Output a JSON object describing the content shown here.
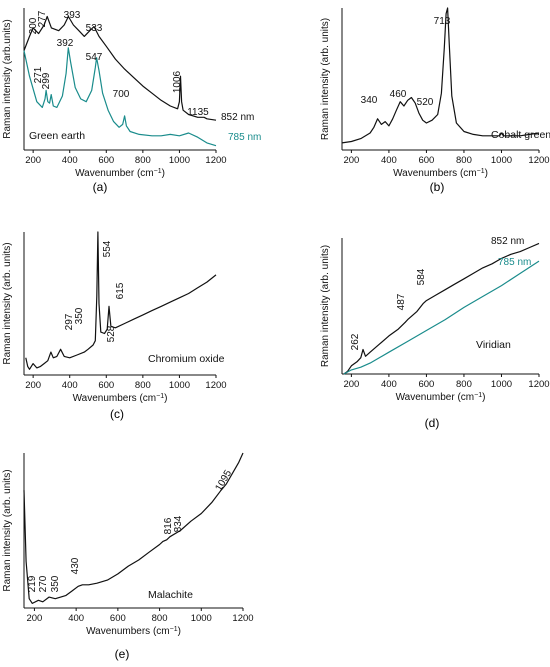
{
  "chart_data": [
    {
      "id": "a",
      "type": "line",
      "panel_label": "(a)",
      "title": "Green earth",
      "xlabel": "Wavenumber",
      "ylabel": "Raman intensity  (arb.units)",
      "xlim": [
        150,
        1200
      ],
      "ylim": [
        0,
        100
      ],
      "xticks": [
        200,
        400,
        600,
        800,
        1000,
        1200
      ],
      "y_tick_labels": false,
      "series": [
        {
          "name": "852 nm",
          "color": "#111111",
          "x": [
            150,
            180,
            200,
            230,
            260,
            277,
            300,
            340,
            370,
            393,
            420,
            450,
            480,
            510,
            533,
            560,
            600,
            650,
            700,
            750,
            800,
            850,
            900,
            950,
            990,
            1000,
            1006,
            1012,
            1020,
            1050,
            1100,
            1135,
            1150,
            1200
          ],
          "y": [
            70,
            80,
            86,
            82,
            88,
            94,
            86,
            84,
            88,
            94,
            88,
            84,
            80,
            84,
            87,
            80,
            73,
            64,
            57,
            51,
            45,
            40,
            35,
            31,
            29,
            34,
            52,
            34,
            28,
            25,
            23,
            23,
            22,
            21
          ]
        },
        {
          "name": "785 nm",
          "color": "#1a8c8c",
          "x": [
            150,
            180,
            220,
            250,
            265,
            271,
            280,
            290,
            299,
            310,
            330,
            360,
            380,
            392,
            405,
            430,
            460,
            490,
            520,
            540,
            547,
            560,
            580,
            610,
            640,
            670,
            690,
            700,
            710,
            730,
            780,
            850,
            900,
            950,
            1000,
            1050,
            1100,
            1150,
            1200
          ],
          "y": [
            70,
            52,
            34,
            30,
            36,
            42,
            34,
            33,
            39,
            31,
            30,
            38,
            54,
            72,
            62,
            44,
            36,
            34,
            42,
            58,
            65,
            56,
            40,
            28,
            20,
            16,
            18,
            24,
            17,
            13,
            11,
            10,
            10,
            11,
            10,
            12,
            9,
            5,
            3
          ]
        }
      ],
      "annotations": [
        "200",
        "277",
        "393",
        "533",
        "271",
        "299",
        "392",
        "547",
        "700",
        "1006",
        "1135"
      ]
    },
    {
      "id": "b",
      "type": "line",
      "panel_label": "(b)",
      "title": "Cobalt green",
      "xlabel": "Wavenumbers",
      "ylabel": "Raman intensity  (arb. units)",
      "xlim": [
        150,
        1200
      ],
      "ylim": [
        0,
        100
      ],
      "xticks": [
        200,
        400,
        600,
        800,
        1000,
        1200
      ],
      "y_tick_labels": false,
      "series": [
        {
          "color": "#111111",
          "x": [
            150,
            200,
            250,
            300,
            320,
            340,
            360,
            380,
            400,
            420,
            440,
            460,
            480,
            500,
            520,
            540,
            560,
            580,
            600,
            630,
            660,
            680,
            695,
            705,
            713,
            722,
            735,
            760,
            800,
            850,
            900,
            950,
            990,
            1000,
            1010,
            1050,
            1100,
            1150,
            1200
          ],
          "y": [
            5,
            6,
            8,
            12,
            16,
            22,
            18,
            20,
            17,
            22,
            28,
            34,
            31,
            35,
            37,
            33,
            26,
            21,
            19,
            21,
            25,
            40,
            72,
            96,
            100,
            74,
            38,
            19,
            13,
            11,
            10,
            10,
            10,
            12,
            10,
            10,
            10,
            11,
            12
          ]
        }
      ],
      "annotations": [
        "340",
        "460",
        "520",
        "713"
      ]
    },
    {
      "id": "c",
      "type": "line",
      "panel_label": "(c)",
      "title": "Chromium oxide",
      "xlabel": "Wavenumbers",
      "ylabel": "Raman intensity  (arb. units)",
      "xlim": [
        150,
        1200
      ],
      "ylim": [
        0,
        100
      ],
      "xticks": [
        200,
        400,
        600,
        800,
        1000,
        1200
      ],
      "y_tick_labels": false,
      "series": [
        {
          "color": "#111111",
          "x": [
            160,
            170,
            180,
            200,
            220,
            240,
            260,
            280,
            297,
            310,
            330,
            350,
            370,
            400,
            440,
            480,
            500,
            528,
            540,
            548,
            554,
            560,
            570,
            590,
            605,
            615,
            625,
            650,
            700,
            750,
            800,
            850,
            900,
            950,
            1000,
            1050,
            1100,
            1150,
            1200
          ],
          "y": [
            12,
            6,
            4,
            8,
            5,
            6,
            8,
            10,
            16,
            12,
            13,
            18,
            13,
            12,
            14,
            16,
            18,
            21,
            24,
            55,
            100,
            50,
            30,
            29,
            32,
            48,
            34,
            33,
            36,
            39,
            42,
            45,
            48,
            51,
            54,
            57,
            61,
            65,
            70
          ]
        }
      ],
      "annotations": [
        "297",
        "350",
        "528",
        "554",
        "615"
      ]
    },
    {
      "id": "d",
      "type": "line",
      "panel_label": "(d)",
      "title": "Viridian",
      "xlabel": "Wavenumber",
      "ylabel": "Raman intensity  (arb. units)",
      "xlim": [
        150,
        1200
      ],
      "ylim": [
        0,
        100
      ],
      "xticks": [
        200,
        400,
        600,
        800,
        1000,
        1200
      ],
      "y_tick_labels": false,
      "series": [
        {
          "name": "852 nm",
          "color": "#111111",
          "x": [
            160,
            180,
            200,
            230,
            250,
            262,
            275,
            300,
            350,
            400,
            450,
            487,
            500,
            550,
            584,
            600,
            650,
            700,
            750,
            800,
            850,
            900,
            950,
            1000,
            1050,
            1100,
            1150,
            1200
          ],
          "y": [
            0,
            2,
            6,
            9,
            12,
            18,
            13,
            16,
            22,
            28,
            33,
            38,
            40,
            46,
            52,
            54,
            58,
            62,
            66,
            70,
            74,
            78,
            81,
            85,
            88,
            90,
            93,
            96
          ]
        },
        {
          "name": "785 nm",
          "color": "#1a8c8c",
          "x": [
            160,
            200,
            250,
            300,
            400,
            500,
            600,
            700,
            800,
            900,
            1000,
            1100,
            1200
          ],
          "y": [
            0,
            3,
            5,
            8,
            16,
            24,
            32,
            40,
            49,
            57,
            65,
            74,
            83
          ]
        }
      ],
      "annotations": [
        "262",
        "487",
        "584"
      ]
    },
    {
      "id": "e",
      "type": "line",
      "panel_label": "(e)",
      "title": "Malachite",
      "xlabel": "Wavenumbers",
      "ylabel": "Raman intensity  (arb. units)",
      "xlim": [
        150,
        1200
      ],
      "ylim": [
        0,
        100
      ],
      "xticks": [
        200,
        400,
        600,
        800,
        1000,
        1200
      ],
      "y_tick_labels": false,
      "series": [
        {
          "color": "#111111",
          "x": [
            150,
            160,
            175,
            190,
            219,
            240,
            270,
            300,
            350,
            380,
            410,
            430,
            460,
            500,
            550,
            600,
            650,
            700,
            750,
            800,
            816,
            834,
            850,
            900,
            950,
            1000,
            1050,
            1095,
            1120,
            1150,
            1180,
            1200
          ],
          "y": [
            76,
            30,
            6,
            3,
            5,
            4,
            7,
            6,
            8,
            11,
            14,
            15,
            15,
            16,
            18,
            22,
            27,
            31,
            36,
            41,
            43,
            44,
            46,
            50,
            56,
            61,
            68,
            76,
            80,
            87,
            94,
            100
          ]
        }
      ],
      "annotations": [
        "219",
        "270",
        "350",
        "430",
        "816",
        "834",
        "1095"
      ]
    }
  ],
  "trace_labels": {
    "a_852": "852 nm",
    "a_785": "785 nm",
    "d_852": "852 nm",
    "d_785": "785 nm"
  },
  "xlabel_unit": "cm",
  "xlabel_unit_exp": "−1"
}
